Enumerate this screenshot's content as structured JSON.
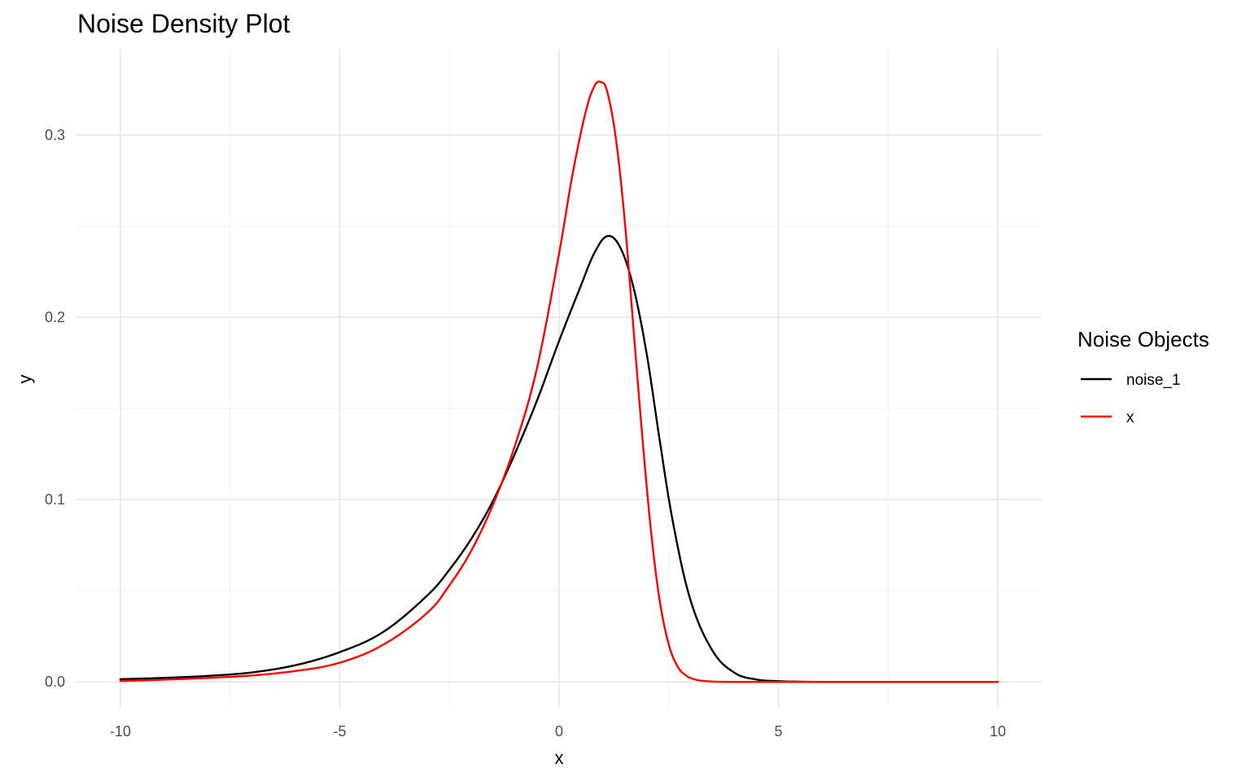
{
  "chart_data": {
    "type": "line",
    "title": "Noise Density Plot",
    "xlabel": "x",
    "ylabel": "y",
    "xlim": [
      -11,
      11
    ],
    "ylim": [
      -0.0142,
      0.3472
    ],
    "x_major_ticks": [
      -10,
      -5,
      0,
      5,
      10
    ],
    "x_tick_labels": [
      "-10",
      "-5",
      "0",
      "5",
      "10"
    ],
    "x_minor_ticks": [
      -7.5,
      -2.5,
      2.5,
      7.5
    ],
    "y_major_ticks": [
      0.0,
      0.1,
      0.2,
      0.3
    ],
    "y_tick_labels": [
      "0.0",
      "0.1",
      "0.2",
      "0.3"
    ],
    "y_minor_ticks": [
      0.05,
      0.15,
      0.25
    ],
    "grid": true,
    "legend": {
      "title": "Noise Objects",
      "position": "right"
    },
    "series": [
      {
        "name": "noise_1",
        "color": "#000000",
        "x": [
          -10,
          -9,
          -8,
          -7,
          -6,
          -5,
          -4,
          -3,
          -2.5,
          -2,
          -1.5,
          -1,
          -0.5,
          0,
          0.5,
          0.8,
          1.1,
          1.4,
          1.7,
          2,
          2.3,
          2.6,
          3,
          3.5,
          4,
          4.5,
          5,
          5.5,
          6,
          7,
          8,
          9,
          10
        ],
        "values": [
          0.0015,
          0.0022,
          0.0033,
          0.0052,
          0.0092,
          0.0163,
          0.0275,
          0.0475,
          0.0615,
          0.0785,
          0.0995,
          0.1255,
          0.1545,
          0.187,
          0.2175,
          0.235,
          0.2445,
          0.238,
          0.216,
          0.1795,
          0.1315,
          0.087,
          0.0445,
          0.017,
          0.005,
          0.0013,
          0.0004,
          0.0001,
          0,
          0,
          0,
          0,
          0
        ]
      },
      {
        "name": "x",
        "color": "#ff0000",
        "x": [
          -10,
          -9,
          -8,
          -7,
          -6,
          -5,
          -4,
          -3,
          -2.5,
          -2,
          -1.5,
          -1,
          -0.5,
          0,
          0.3,
          0.6,
          0.8,
          0.95,
          1.1,
          1.3,
          1.5,
          1.7,
          1.9,
          2.1,
          2.3,
          2.5,
          2.7,
          2.9,
          3.1,
          3.3,
          3.6,
          4,
          5,
          6,
          8,
          10
        ],
        "values": [
          0.0005,
          0.0012,
          0.0022,
          0.0035,
          0.006,
          0.0105,
          0.0205,
          0.038,
          0.053,
          0.072,
          0.0975,
          0.13,
          0.1725,
          0.235,
          0.2775,
          0.312,
          0.3265,
          0.329,
          0.3235,
          0.297,
          0.252,
          0.1925,
          0.1335,
          0.0815,
          0.0435,
          0.0205,
          0.0085,
          0.0034,
          0.0013,
          0.0005,
          0.0001,
          0,
          0,
          0,
          0,
          0
        ]
      }
    ]
  }
}
